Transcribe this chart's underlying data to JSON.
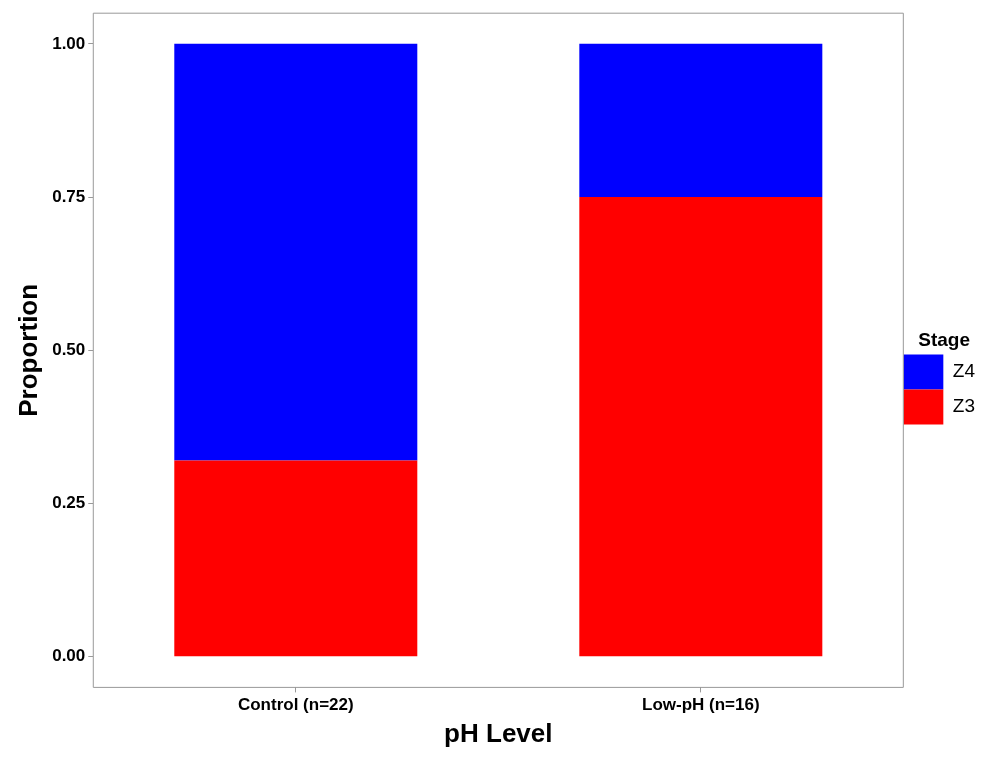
{
  "chart_data": {
    "type": "bar",
    "xlabel": "pH Level",
    "ylabel": "Proportion",
    "legend_title": "Stage",
    "categories": [
      "Control (n=22)",
      "Low-pH (n=16)"
    ],
    "series": [
      {
        "name": "Z3",
        "color": "#ff0000",
        "values": [
          0.32,
          0.75
        ]
      },
      {
        "name": "Z4",
        "color": "#0000ff",
        "values": [
          0.68,
          0.25
        ]
      }
    ],
    "stacked": true,
    "ylim": [
      -0.05,
      1.05
    ],
    "yticks": [
      {
        "value": 0,
        "label": "0.00"
      },
      {
        "value": 0.25,
        "label": "0.25"
      },
      {
        "value": 0.5,
        "label": "0.50"
      },
      {
        "value": 0.75,
        "label": "0.75"
      },
      {
        "value": 1,
        "label": "1.00"
      }
    ],
    "grid": false,
    "legend": "right"
  }
}
